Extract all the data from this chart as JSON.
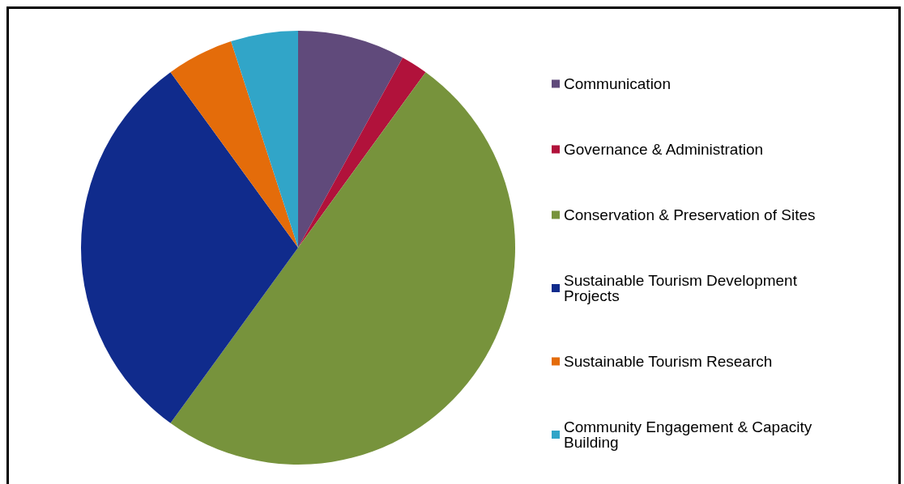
{
  "chart_data": {
    "type": "pie",
    "legend": "right",
    "categories": [
      "Communication",
      "Governance & Administration",
      "Conservation & Preservation of Sites",
      "Sustainable Tourism Development Projects",
      "Sustainable Tourism Research",
      "Community Engagement & Capacity Building"
    ],
    "values": [
      8,
      2,
      50,
      30,
      5,
      5
    ],
    "colors": [
      "#604a7b",
      "#b1123b",
      "#77933c",
      "#102b8c",
      "#e46c0a",
      "#31a5c8"
    ]
  }
}
